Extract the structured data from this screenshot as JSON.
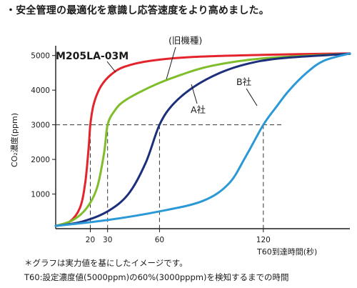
{
  "headline": "・安全管理の最適化を意識し応答速度をより高めました。",
  "notes": {
    "line1": "＊グラフは実力値を基にしたイメージです。",
    "line2": "T60:設定濃度値(5000ppm)の60%(3000pppm)を検知するまでの時間"
  },
  "chart_data": {
    "type": "line",
    "xlabel": "T60到達時間(秒)",
    "ylabel": "CO₂濃度(ppm)",
    "xlim": [
      0,
      170
    ],
    "ylim": [
      0,
      5200
    ],
    "x_ticks": [
      20,
      30,
      60,
      120
    ],
    "y_ticks": [
      1000,
      2000,
      3000,
      4000,
      5000
    ],
    "reference_level": 3000,
    "series": [
      {
        "name": "M205LA-03M",
        "color": "#e4242d",
        "t60": 20,
        "points": [
          [
            0,
            80
          ],
          [
            8,
            200
          ],
          [
            14,
            600
          ],
          [
            17,
            1300
          ],
          [
            19,
            2300
          ],
          [
            20,
            3000
          ],
          [
            22,
            3600
          ],
          [
            26,
            4100
          ],
          [
            32,
            4450
          ],
          [
            40,
            4680
          ],
          [
            55,
            4850
          ],
          [
            80,
            4960
          ],
          [
            120,
            5020
          ],
          [
            170,
            5060
          ]
        ]
      },
      {
        "name": "(旧機種)",
        "color": "#7fbd2b",
        "t60": 30,
        "points": [
          [
            0,
            80
          ],
          [
            10,
            250
          ],
          [
            18,
            600
          ],
          [
            24,
            1200
          ],
          [
            28,
            2200
          ],
          [
            30,
            3000
          ],
          [
            34,
            3400
          ],
          [
            40,
            3700
          ],
          [
            55,
            4100
          ],
          [
            70,
            4400
          ],
          [
            90,
            4700
          ],
          [
            120,
            4920
          ],
          [
            170,
            5050
          ]
        ]
      },
      {
        "name": "A社",
        "color": "#1c2f7a",
        "t60": 60,
        "points": [
          [
            0,
            80
          ],
          [
            15,
            200
          ],
          [
            30,
            500
          ],
          [
            42,
            1000
          ],
          [
            52,
            1900
          ],
          [
            60,
            3000
          ],
          [
            68,
            3600
          ],
          [
            80,
            4100
          ],
          [
            95,
            4500
          ],
          [
            110,
            4750
          ],
          [
            130,
            4920
          ],
          [
            170,
            5050
          ]
        ]
      },
      {
        "name": "B社",
        "color": "#2b99d6",
        "t60": 120,
        "points": [
          [
            0,
            80
          ],
          [
            30,
            250
          ],
          [
            60,
            500
          ],
          [
            85,
            800
          ],
          [
            100,
            1300
          ],
          [
            110,
            2100
          ],
          [
            120,
            3000
          ],
          [
            128,
            3550
          ],
          [
            135,
            4000
          ],
          [
            145,
            4500
          ],
          [
            155,
            4850
          ],
          [
            170,
            5060
          ]
        ]
      }
    ],
    "annotations": [
      {
        "text": "M205LA-03M",
        "series": "M205LA-03M"
      },
      {
        "text": "(旧機種)",
        "series": "(旧機種)"
      },
      {
        "text": "A社",
        "series": "A社"
      },
      {
        "text": "B社",
        "series": "B社"
      }
    ]
  }
}
